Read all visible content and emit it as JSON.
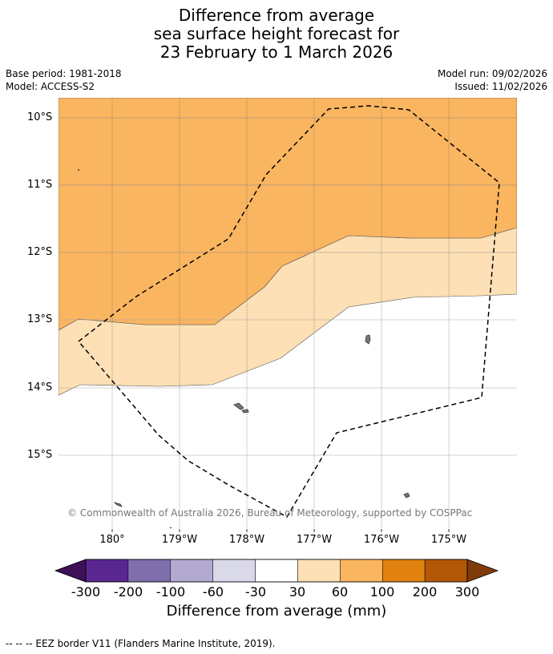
{
  "title": {
    "line1": "Difference from average",
    "line2": "sea surface height forecast for",
    "line3": "23 February to 1 March 2026"
  },
  "meta": {
    "base_period": "Base period: 1981-2018",
    "model": "Model: ACCESS-S2",
    "model_run": "Model run: 09/02/2026",
    "issued": "Issued: 11/02/2026"
  },
  "map": {
    "lat_labels": [
      "10°S",
      "11°S",
      "12°S",
      "13°S",
      "14°S",
      "15°S"
    ],
    "lon_labels": [
      "180°",
      "179°W",
      "178°W",
      "177°W",
      "176°W",
      "175°W"
    ],
    "copyright": "© Commonwealth of Australia 2026, Bureau of Meteorology, supported by COSPPac",
    "zones": [
      {
        "name": "60 to 100 mm",
        "color": "#fab560"
      },
      {
        "name": "30 to 60 mm",
        "color": "#fde0b5"
      },
      {
        "name": "-30 to 30 mm",
        "color": "#ffffff"
      }
    ],
    "eez_border": "dashed"
  },
  "colorbar": {
    "labels": [
      "-300",
      "-200",
      "-100",
      "-60",
      "-30",
      "30",
      "60",
      "100",
      "200",
      "300"
    ],
    "colors": [
      "#3d1057",
      "#5a2790",
      "#7f6fad",
      "#b2a9d1",
      "#d9d9ea",
      "#ffffff",
      "#fde0b5",
      "#fab560",
      "#e1810f",
      "#b35806",
      "#7f3b08"
    ],
    "title": "Difference from average (mm)"
  },
  "footer": "--  --  -- EEZ border V11 (Flanders Marine Institute, 2019)."
}
